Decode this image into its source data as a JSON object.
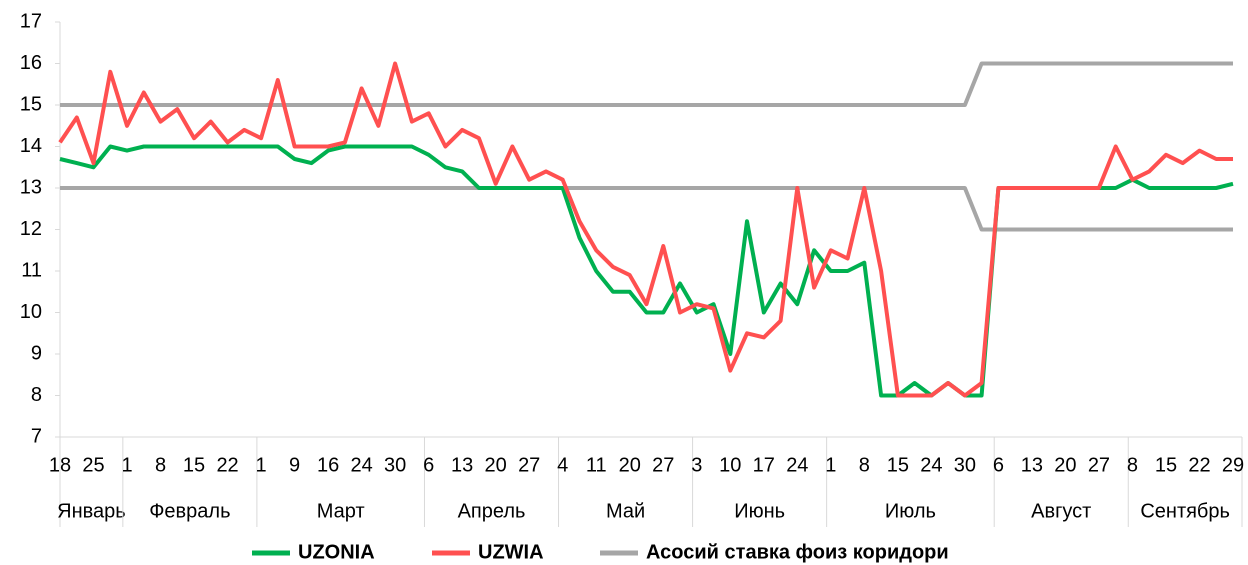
{
  "chart_data": {
    "type": "line",
    "groups": [
      {
        "name": "Январь",
        "categories": [
          "18",
          null,
          "25",
          null
        ]
      },
      {
        "name": "Февраль",
        "categories": [
          "1",
          null,
          "8",
          null,
          "15",
          null,
          "22",
          null
        ]
      },
      {
        "name": "Март",
        "categories": [
          "1",
          null,
          "9",
          null,
          "16",
          null,
          "24",
          null,
          "30",
          null
        ]
      },
      {
        "name": "Апрель",
        "categories": [
          "6",
          null,
          "13",
          null,
          "20",
          null,
          "27",
          null
        ]
      },
      {
        "name": "Май",
        "categories": [
          "4",
          null,
          "11",
          null,
          "20",
          null,
          "27",
          null
        ]
      },
      {
        "name": "Июнь",
        "categories": [
          "3",
          null,
          "10",
          null,
          "17",
          null,
          "24",
          null
        ]
      },
      {
        "name": "Июль",
        "categories": [
          "1",
          null,
          "8",
          null,
          "15",
          null,
          "24",
          null,
          "30",
          null
        ]
      },
      {
        "name": "Август",
        "categories": [
          "6",
          null,
          "13",
          null,
          "20",
          null,
          "27",
          null
        ]
      },
      {
        "name": "Сентябрь",
        "categories": [
          "8",
          null,
          "15",
          null,
          "22",
          null,
          "29"
        ]
      }
    ],
    "series": [
      {
        "name": "UZONIA",
        "color": "#00b050",
        "values": [
          13.7,
          13.6,
          13.5,
          14.0,
          13.9,
          14.0,
          14.0,
          14.0,
          14.0,
          14.0,
          14.0,
          14.0,
          14.0,
          14.0,
          13.7,
          13.6,
          13.9,
          14.0,
          14.0,
          14.0,
          14.0,
          14.0,
          13.8,
          13.5,
          13.4,
          13.0,
          13.0,
          13.0,
          13.0,
          13.0,
          13.0,
          11.8,
          11.0,
          10.5,
          10.5,
          10.0,
          10.0,
          10.7,
          10.0,
          10.2,
          9.0,
          12.2,
          10.0,
          10.7,
          10.2,
          11.5,
          11.0,
          11.0,
          11.2,
          8.0,
          8.0,
          8.3,
          8.0,
          8.3,
          8.0,
          8.0,
          13.0,
          13.0,
          13.0,
          13.0,
          13.0,
          13.0,
          13.0,
          13.0,
          13.2,
          13.0,
          13.0,
          13.0,
          13.0,
          13.0,
          13.1
        ]
      },
      {
        "name": "UZWIA",
        "color": "#ff5050",
        "values": [
          14.1,
          14.7,
          13.6,
          15.8,
          14.5,
          15.3,
          14.6,
          14.9,
          14.2,
          14.6,
          14.1,
          14.4,
          14.2,
          15.6,
          14.0,
          14.0,
          14.0,
          14.1,
          15.4,
          14.5,
          16.0,
          14.6,
          14.8,
          14.0,
          14.4,
          14.2,
          13.1,
          14.0,
          13.2,
          13.4,
          13.2,
          12.2,
          11.5,
          11.1,
          10.9,
          10.2,
          11.6,
          10.0,
          10.2,
          10.1,
          8.6,
          9.5,
          9.4,
          9.8,
          13.0,
          10.6,
          11.5,
          11.3,
          13.0,
          11.0,
          8.0,
          8.0,
          8.0,
          8.3,
          8.0,
          8.3,
          13.0,
          13.0,
          13.0,
          13.0,
          13.0,
          13.0,
          13.0,
          14.0,
          13.2,
          13.4,
          13.8,
          13.6,
          13.9,
          13.7,
          13.7
        ]
      }
    ],
    "corridor": {
      "name": "Асосий ставка фоиз коридори",
      "color": "#a6a6a6",
      "upper": [
        15,
        15,
        15,
        15,
        15,
        15,
        15,
        15,
        15,
        15,
        15,
        15,
        15,
        15,
        15,
        15,
        15,
        15,
        15,
        15,
        15,
        15,
        15,
        15,
        15,
        15,
        15,
        15,
        15,
        15,
        15,
        15,
        15,
        15,
        15,
        15,
        15,
        15,
        15,
        15,
        15,
        15,
        15,
        15,
        15,
        15,
        15,
        15,
        15,
        15,
        15,
        15,
        15,
        15,
        15,
        16,
        16,
        16,
        16,
        16,
        16,
        16,
        16,
        16,
        16,
        16,
        16,
        16,
        16,
        16,
        16
      ],
      "lower": [
        13,
        13,
        13,
        13,
        13,
        13,
        13,
        13,
        13,
        13,
        13,
        13,
        13,
        13,
        13,
        13,
        13,
        13,
        13,
        13,
        13,
        13,
        13,
        13,
        13,
        13,
        13,
        13,
        13,
        13,
        13,
        13,
        13,
        13,
        13,
        13,
        13,
        13,
        13,
        13,
        13,
        13,
        13,
        13,
        13,
        13,
        13,
        13,
        13,
        13,
        13,
        13,
        13,
        13,
        13,
        12,
        12,
        12,
        12,
        12,
        12,
        12,
        12,
        12,
        12,
        12,
        12,
        12,
        12,
        12,
        12
      ]
    },
    "ylim": [
      7,
      17
    ],
    "yticks": [
      7,
      8,
      9,
      10,
      11,
      12,
      13,
      14,
      15,
      16,
      17
    ],
    "grid": false
  }
}
